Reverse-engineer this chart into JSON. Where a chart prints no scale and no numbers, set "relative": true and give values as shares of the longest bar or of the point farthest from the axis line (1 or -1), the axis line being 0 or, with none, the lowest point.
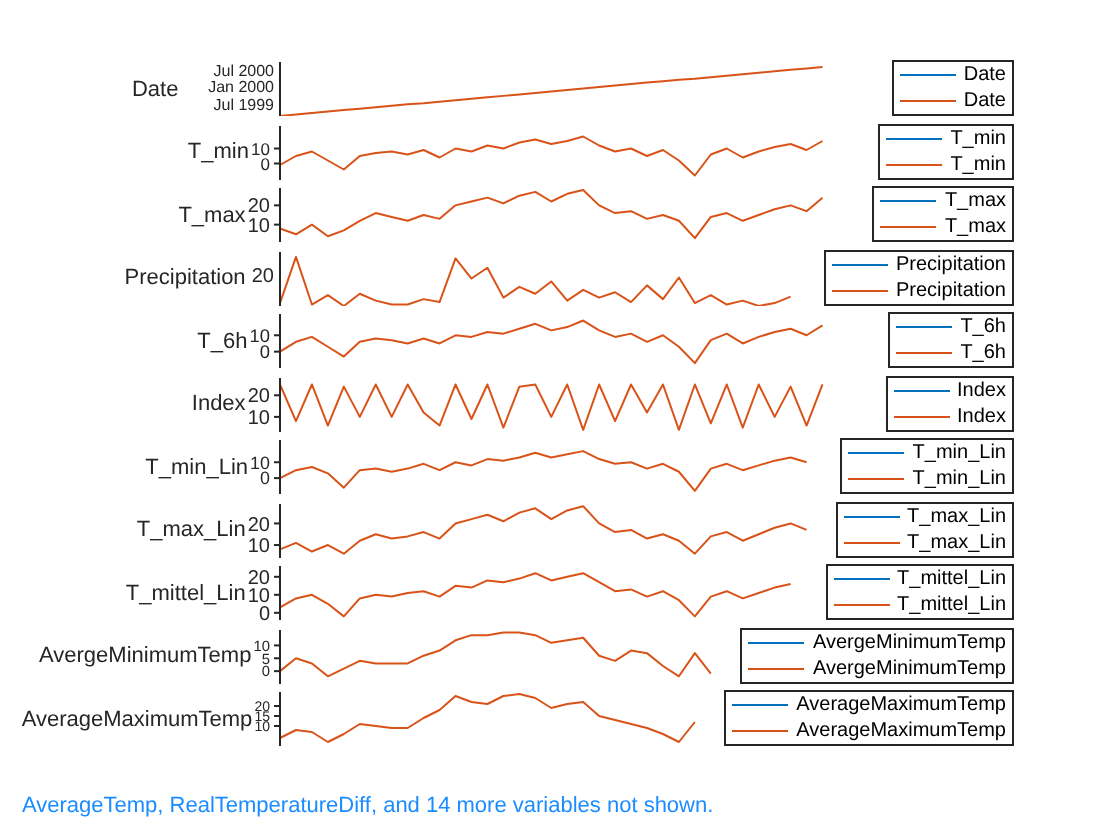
{
  "chart_data": [
    {
      "type": "line",
      "ylabel": "Date",
      "tick_labels": "y",
      "legend": "right",
      "marker": "none",
      "line_style": "solid",
      "categories": [
        null,
        null,
        null,
        null,
        null,
        null,
        null,
        null,
        null,
        null,
        null,
        null,
        null,
        null,
        null,
        null,
        null,
        null,
        null,
        null,
        null,
        null,
        null,
        null,
        null,
        null,
        null,
        null,
        null,
        null,
        null,
        null,
        null,
        null,
        null,
        null,
        null,
        null,
        null,
        null,
        null,
        null,
        null,
        null,
        null,
        null,
        null
      ],
      "relative": true,
      "annotations": [
        "Jul 2000",
        "Jan 2000",
        "Jul 1999"
      ],
      "series": [
        {
          "name": "Date",
          "color": "#0072bd",
          "values": [
            null,
            null,
            null,
            null,
            null,
            null,
            null,
            null,
            null,
            null,
            null,
            null,
            null,
            null,
            null,
            null,
            null,
            null,
            null,
            null,
            null,
            null,
            null,
            null,
            null,
            null,
            null,
            null,
            null,
            null,
            null,
            null,
            null,
            null,
            null,
            null,
            null,
            null,
            null,
            null,
            null,
            null,
            null,
            null,
            null,
            null,
            null
          ]
        },
        {
          "name": "Date",
          "color": "#d95319",
          "values": [
            0,
            0.03,
            0.06,
            0.09,
            0.12,
            0.15,
            0.18,
            0.21,
            0.24,
            0.26,
            0.29,
            0.32,
            0.35,
            0.38,
            0.41,
            0.44,
            0.47,
            0.5,
            0.53,
            0.56,
            0.59,
            0.62,
            0.65,
            0.68,
            0.71,
            0.74,
            0.76,
            0.79,
            0.82,
            0.85,
            0.88,
            0.91,
            0.94,
            0.97,
            1,
            null,
            null,
            null,
            null,
            null,
            null,
            null,
            null,
            null,
            null,
            null,
            null
          ]
        }
      ]
    },
    {
      "type": "line",
      "ylabel": "T_min",
      "tick_labels": "y",
      "legend": "right",
      "marker": "none",
      "line_style": "solid",
      "categories": [
        null,
        null,
        null,
        null,
        null,
        null,
        null,
        null,
        null,
        null,
        null,
        null,
        null,
        null,
        null,
        null,
        null,
        null,
        null,
        null,
        null,
        null,
        null,
        null,
        null,
        null,
        null,
        null,
        null,
        null,
        null,
        null,
        null,
        null,
        null,
        null,
        null,
        null,
        null,
        null,
        null,
        null,
        null,
        null,
        null,
        null,
        null
      ],
      "ylim": [
        -11,
        25
      ],
      "yticks": [
        0,
        10
      ],
      "series": [
        {
          "name": "T_min",
          "color": "#0072bd",
          "values": [
            null,
            null,
            null,
            null,
            null,
            null,
            null,
            null,
            null,
            null,
            null,
            null,
            null,
            null,
            null,
            null,
            null,
            null,
            null,
            null,
            null,
            null,
            null,
            null,
            null,
            null,
            null,
            null,
            null,
            null,
            null,
            null,
            null,
            null,
            null,
            null,
            null,
            null,
            null,
            null,
            null,
            null,
            null,
            null,
            null,
            null,
            null
          ]
        },
        {
          "name": "T_min",
          "color": "#d95319",
          "values": [
            -1,
            5,
            8,
            2,
            -4,
            5,
            7,
            8,
            6,
            9,
            4,
            10,
            8,
            12,
            10,
            14,
            16,
            13,
            15,
            18,
            12,
            8,
            10,
            5,
            9,
            2,
            -8,
            6,
            10,
            4,
            8,
            11,
            13,
            9,
            15,
            null,
            null,
            null,
            null,
            null,
            null,
            null,
            null,
            null,
            null,
            null,
            null
          ]
        }
      ]
    },
    {
      "type": "line",
      "ylabel": "T_max",
      "tick_labels": "y",
      "legend": "right",
      "marker": "none",
      "line_style": "solid",
      "categories": [
        null,
        null,
        null,
        null,
        null,
        null,
        null,
        null,
        null,
        null,
        null,
        null,
        null,
        null,
        null,
        null,
        null,
        null,
        null,
        null,
        null,
        null,
        null,
        null,
        null,
        null,
        null,
        null,
        null,
        null,
        null,
        null,
        null,
        null,
        null,
        null,
        null,
        null,
        null,
        null,
        null,
        null,
        null,
        null,
        null,
        null,
        null
      ],
      "ylim": [
        1,
        29
      ],
      "yticks": [
        10,
        20
      ],
      "series": [
        {
          "name": "T_max",
          "color": "#0072bd",
          "values": [
            null,
            null,
            null,
            null,
            null,
            null,
            null,
            null,
            null,
            null,
            null,
            null,
            null,
            null,
            null,
            null,
            null,
            null,
            null,
            null,
            null,
            null,
            null,
            null,
            null,
            null,
            null,
            null,
            null,
            null,
            null,
            null,
            null,
            null,
            null,
            null,
            null,
            null,
            null,
            null,
            null,
            null,
            null,
            null,
            null,
            null,
            null
          ]
        },
        {
          "name": "T_max",
          "color": "#d95319",
          "values": [
            8,
            5,
            10,
            4,
            7,
            12,
            16,
            14,
            12,
            15,
            13,
            20,
            22,
            24,
            21,
            25,
            27,
            22,
            26,
            28,
            20,
            16,
            17,
            13,
            15,
            12,
            3,
            14,
            16,
            12,
            15,
            18,
            20,
            17,
            24,
            null,
            null,
            null,
            null,
            null,
            null,
            null,
            null,
            null,
            null,
            null,
            null
          ]
        }
      ]
    },
    {
      "type": "line",
      "ylabel": "Precipitation",
      "tick_labels": "y",
      "legend": "right",
      "marker": "none",
      "line_style": "solid",
      "categories": [
        null,
        null,
        null,
        null,
        null,
        null,
        null,
        null,
        null,
        null,
        null,
        null,
        null,
        null,
        null,
        null,
        null,
        null,
        null,
        null,
        null,
        null,
        null,
        null,
        null,
        null,
        null,
        null,
        null,
        null,
        null,
        null,
        null,
        null,
        null,
        null,
        null,
        null,
        null,
        null,
        null,
        null,
        null,
        null,
        null,
        null,
        null
      ],
      "relative": true,
      "annotations": [
        "20"
      ],
      "series": [
        {
          "name": "Precipitation",
          "color": "#0072bd",
          "values": [
            null,
            null,
            null,
            null,
            null,
            null,
            null,
            null,
            null,
            null,
            null,
            null,
            null,
            null,
            null,
            null,
            null,
            null,
            null,
            null,
            null,
            null,
            null,
            null,
            null,
            null,
            null,
            null,
            null,
            null,
            null,
            null,
            null,
            null,
            null,
            null,
            null,
            null,
            null,
            null,
            null,
            null,
            null,
            null,
            null,
            null,
            null
          ]
        },
        {
          "name": "Precipitation",
          "color": "#d95319",
          "values": [
            0.06,
            1,
            0.03,
            0.22,
            0,
            0.25,
            0.11,
            0.03,
            0.03,
            0.14,
            0.08,
            0.97,
            0.56,
            0.78,
            0.17,
            0.39,
            0.25,
            0.5,
            0.11,
            0.33,
            0.17,
            0.28,
            0.08,
            0.42,
            0.14,
            0.58,
            0.06,
            0.22,
            0.03,
            0.11,
            0,
            0.06,
            0.19,
            null,
            null,
            null,
            null,
            null,
            null,
            null,
            null,
            null,
            null,
            null,
            null,
            null,
            null
          ]
        }
      ]
    },
    {
      "type": "line",
      "ylabel": "T_6h",
      "tick_labels": "y",
      "legend": "right",
      "marker": "none",
      "line_style": "solid",
      "categories": [
        null,
        null,
        null,
        null,
        null,
        null,
        null,
        null,
        null,
        null,
        null,
        null,
        null,
        null,
        null,
        null,
        null,
        null,
        null,
        null,
        null,
        null,
        null,
        null,
        null,
        null,
        null,
        null,
        null,
        null,
        null,
        null,
        null,
        null,
        null,
        null,
        null,
        null,
        null,
        null,
        null,
        null,
        null,
        null,
        null,
        null,
        null
      ],
      "ylim": [
        -10,
        23
      ],
      "yticks": [
        0,
        10
      ],
      "series": [
        {
          "name": "T_6h",
          "color": "#0072bd",
          "values": [
            null,
            null,
            null,
            null,
            null,
            null,
            null,
            null,
            null,
            null,
            null,
            null,
            null,
            null,
            null,
            null,
            null,
            null,
            null,
            null,
            null,
            null,
            null,
            null,
            null,
            null,
            null,
            null,
            null,
            null,
            null,
            null,
            null,
            null,
            null,
            null,
            null,
            null,
            null,
            null,
            null,
            null,
            null,
            null,
            null,
            null,
            null
          ]
        },
        {
          "name": "T_6h",
          "color": "#d95319",
          "values": [
            0,
            6,
            9,
            3,
            -3,
            6,
            8,
            7,
            5,
            8,
            5,
            10,
            9,
            12,
            11,
            14,
            17,
            13,
            15,
            19,
            13,
            9,
            11,
            6,
            10,
            3,
            -7,
            7,
            11,
            5,
            9,
            12,
            14,
            10,
            16,
            null,
            null,
            null,
            null,
            null,
            null,
            null,
            null,
            null,
            null,
            null,
            null
          ]
        }
      ]
    },
    {
      "type": "line",
      "ylabel": "Index",
      "tick_labels": "y",
      "legend": "right",
      "marker": "none",
      "line_style": "solid",
      "categories": [
        null,
        null,
        null,
        null,
        null,
        null,
        null,
        null,
        null,
        null,
        null,
        null,
        null,
        null,
        null,
        null,
        null,
        null,
        null,
        null,
        null,
        null,
        null,
        null,
        null,
        null,
        null,
        null,
        null,
        null,
        null,
        null,
        null,
        null,
        null,
        null,
        null,
        null,
        null,
        null,
        null,
        null,
        null,
        null,
        null,
        null,
        null
      ],
      "ylim": [
        3,
        28
      ],
      "yticks": [
        10,
        20
      ],
      "series": [
        {
          "name": "Index",
          "color": "#0072bd",
          "values": [
            null,
            null,
            null,
            null,
            null,
            null,
            null,
            null,
            null,
            null,
            null,
            null,
            null,
            null,
            null,
            null,
            null,
            null,
            null,
            null,
            null,
            null,
            null,
            null,
            null,
            null,
            null,
            null,
            null,
            null,
            null,
            null,
            null,
            null,
            null,
            null,
            null,
            null,
            null,
            null,
            null,
            null,
            null,
            null,
            null,
            null,
            null
          ]
        },
        {
          "name": "Index",
          "color": "#d95319",
          "values": [
            25,
            8,
            25,
            6,
            24,
            10,
            25,
            10,
            25,
            12,
            6,
            25,
            9,
            25,
            5,
            24,
            25,
            10,
            25,
            4,
            25,
            8,
            25,
            12,
            25,
            4,
            25,
            7,
            25,
            5,
            25,
            10,
            24,
            6,
            25,
            null,
            null,
            null,
            null,
            null,
            null,
            null,
            null,
            null,
            null,
            null,
            null
          ]
        }
      ]
    },
    {
      "type": "line",
      "ylabel": "T_min_Lin",
      "tick_labels": "y",
      "legend": "right",
      "marker": "none",
      "line_style": "solid",
      "categories": [
        null,
        null,
        null,
        null,
        null,
        null,
        null,
        null,
        null,
        null,
        null,
        null,
        null,
        null,
        null,
        null,
        null,
        null,
        null,
        null,
        null,
        null,
        null,
        null,
        null,
        null,
        null,
        null,
        null,
        null,
        null,
        null,
        null,
        null,
        null,
        null,
        null,
        null,
        null,
        null,
        null,
        null,
        null,
        null,
        null,
        null,
        null
      ],
      "ylim": [
        -10,
        24
      ],
      "yticks": [
        0,
        10
      ],
      "series": [
        {
          "name": "T_min_Lin",
          "color": "#0072bd",
          "values": [
            null,
            null,
            null,
            null,
            null,
            null,
            null,
            null,
            null,
            null,
            null,
            null,
            null,
            null,
            null,
            null,
            null,
            null,
            null,
            null,
            null,
            null,
            null,
            null,
            null,
            null,
            null,
            null,
            null,
            null,
            null,
            null,
            null,
            null,
            null,
            null,
            null,
            null,
            null,
            null,
            null,
            null,
            null,
            null,
            null,
            null,
            null
          ]
        },
        {
          "name": "T_min_Lin",
          "color": "#d95319",
          "values": [
            0,
            5,
            7,
            3,
            -6,
            5,
            6,
            4,
            6,
            9,
            5,
            10,
            8,
            12,
            11,
            13,
            16,
            13,
            15,
            17,
            12,
            9,
            10,
            6,
            9,
            4,
            -8,
            6,
            9,
            5,
            8,
            11,
            13,
            10,
            null,
            null,
            null,
            null,
            null,
            null,
            null,
            null,
            null,
            null,
            null,
            null,
            null
          ]
        }
      ]
    },
    {
      "type": "line",
      "ylabel": "T_max_Lin",
      "tick_labels": "y",
      "legend": "right",
      "marker": "none",
      "line_style": "solid",
      "categories": [
        null,
        null,
        null,
        null,
        null,
        null,
        null,
        null,
        null,
        null,
        null,
        null,
        null,
        null,
        null,
        null,
        null,
        null,
        null,
        null,
        null,
        null,
        null,
        null,
        null,
        null,
        null,
        null,
        null,
        null,
        null,
        null,
        null,
        null,
        null,
        null,
        null,
        null,
        null,
        null,
        null,
        null,
        null,
        null,
        null,
        null,
        null
      ],
      "ylim": [
        4,
        29
      ],
      "yticks": [
        10,
        20
      ],
      "series": [
        {
          "name": "T_max_Lin",
          "color": "#0072bd",
          "values": [
            null,
            null,
            null,
            null,
            null,
            null,
            null,
            null,
            null,
            null,
            null,
            null,
            null,
            null,
            null,
            null,
            null,
            null,
            null,
            null,
            null,
            null,
            null,
            null,
            null,
            null,
            null,
            null,
            null,
            null,
            null,
            null,
            null,
            null,
            null,
            null,
            null,
            null,
            null,
            null,
            null,
            null,
            null,
            null,
            null,
            null,
            null
          ]
        },
        {
          "name": "T_max_Lin",
          "color": "#d95319",
          "values": [
            8,
            11,
            7,
            10,
            6,
            12,
            15,
            13,
            14,
            16,
            13,
            20,
            22,
            24,
            21,
            25,
            27,
            22,
            26,
            28,
            20,
            16,
            17,
            13,
            15,
            12,
            6,
            14,
            16,
            12,
            15,
            18,
            20,
            17,
            null,
            null,
            null,
            null,
            null,
            null,
            null,
            null,
            null,
            null,
            null,
            null,
            null
          ]
        }
      ]
    },
    {
      "type": "line",
      "ylabel": "T_mittel_Lin",
      "tick_labels": "y",
      "legend": "right",
      "marker": "none",
      "line_style": "solid",
      "categories": [
        null,
        null,
        null,
        null,
        null,
        null,
        null,
        null,
        null,
        null,
        null,
        null,
        null,
        null,
        null,
        null,
        null,
        null,
        null,
        null,
        null,
        null,
        null,
        null,
        null,
        null,
        null,
        null,
        null,
        null,
        null,
        null,
        null,
        null,
        null,
        null,
        null,
        null,
        null,
        null,
        null,
        null,
        null,
        null,
        null,
        null,
        null
      ],
      "ylim": [
        -4,
        26
      ],
      "yticks": [
        0,
        10,
        20
      ],
      "series": [
        {
          "name": "T_mittel_Lin",
          "color": "#0072bd",
          "values": [
            null,
            null,
            null,
            null,
            null,
            null,
            null,
            null,
            null,
            null,
            null,
            null,
            null,
            null,
            null,
            null,
            null,
            null,
            null,
            null,
            null,
            null,
            null,
            null,
            null,
            null,
            null,
            null,
            null,
            null,
            null,
            null,
            null,
            null,
            null,
            null,
            null,
            null,
            null,
            null,
            null,
            null,
            null,
            null,
            null,
            null,
            null
          ]
        },
        {
          "name": "T_mittel_Lin",
          "color": "#d95319",
          "values": [
            3,
            8,
            10,
            5,
            -2,
            8,
            10,
            9,
            11,
            12,
            9,
            15,
            14,
            18,
            17,
            19,
            22,
            18,
            20,
            22,
            17,
            12,
            13,
            9,
            12,
            7,
            -2,
            9,
            12,
            8,
            11,
            14,
            16,
            null,
            null,
            null,
            null,
            null,
            null,
            null,
            null,
            null,
            null,
            null,
            null,
            null,
            null
          ]
        }
      ]
    },
    {
      "type": "line",
      "ylabel": "AvergeMinimumTemp",
      "tick_labels": "y",
      "legend": "right",
      "marker": "none",
      "line_style": "solid",
      "categories": [
        null,
        null,
        null,
        null,
        null,
        null,
        null,
        null,
        null,
        null,
        null,
        null,
        null,
        null,
        null,
        null,
        null,
        null,
        null,
        null,
        null,
        null,
        null,
        null,
        null,
        null,
        null,
        null,
        null,
        null,
        null,
        null,
        null,
        null,
        null,
        null,
        null,
        null,
        null,
        null,
        null,
        null,
        null,
        null,
        null,
        null,
        null
      ],
      "ylim": [
        -5,
        16
      ],
      "yticks": [
        0,
        5,
        10
      ],
      "series": [
        {
          "name": "AvergeMinimumTemp",
          "color": "#0072bd",
          "values": [
            null,
            null,
            null,
            null,
            null,
            null,
            null,
            null,
            null,
            null,
            null,
            null,
            null,
            null,
            null,
            null,
            null,
            null,
            null,
            null,
            null,
            null,
            null,
            null,
            null,
            null,
            null,
            null,
            null,
            null,
            null,
            null,
            null,
            null,
            null,
            null,
            null,
            null,
            null,
            null,
            null,
            null,
            null,
            null,
            null,
            null,
            null
          ]
        },
        {
          "name": "AvergeMinimumTemp",
          "color": "#d95319",
          "values": [
            0,
            5,
            3,
            -2,
            1,
            4,
            3,
            3,
            3,
            6,
            8,
            12,
            14,
            14,
            15,
            15,
            14,
            11,
            12,
            13,
            6,
            4,
            8,
            7,
            2,
            -2,
            7,
            -1,
            null,
            null,
            null,
            null,
            null,
            null,
            null,
            null,
            null,
            null,
            null,
            null,
            null,
            null,
            null,
            null,
            null,
            null,
            null
          ]
        }
      ]
    },
    {
      "type": "line",
      "ylabel": "AverageMaximumTemp",
      "tick_labels": "y",
      "legend": "right",
      "marker": "none",
      "line_style": "solid",
      "categories": [
        null,
        null,
        null,
        null,
        null,
        null,
        null,
        null,
        null,
        null,
        null,
        null,
        null,
        null,
        null,
        null,
        null,
        null,
        null,
        null,
        null,
        null,
        null,
        null,
        null,
        null,
        null,
        null,
        null,
        null,
        null,
        null,
        null,
        null,
        null,
        null,
        null,
        null,
        null,
        null,
        null,
        null,
        null,
        null,
        null,
        null,
        null
      ],
      "ylim": [
        0,
        27
      ],
      "yticks": [
        10,
        15,
        20
      ],
      "annotations": [
        "AverageTemp, RealTemperatureDiff, and 14 more variables not shown."
      ],
      "series": [
        {
          "name": "AverageMaximumTemp",
          "color": "#0072bd",
          "values": [
            null,
            null,
            null,
            null,
            null,
            null,
            null,
            null,
            null,
            null,
            null,
            null,
            null,
            null,
            null,
            null,
            null,
            null,
            null,
            null,
            null,
            null,
            null,
            null,
            null,
            null,
            null,
            null,
            null,
            null,
            null,
            null,
            null,
            null,
            null,
            null,
            null,
            null,
            null,
            null,
            null,
            null,
            null,
            null,
            null,
            null,
            null
          ]
        },
        {
          "name": "AverageMaximumTemp",
          "color": "#d95319",
          "values": [
            4,
            8,
            7,
            2,
            6,
            11,
            10,
            9,
            9,
            14,
            18,
            25,
            22,
            21,
            25,
            26,
            24,
            19,
            21,
            22,
            15,
            13,
            11,
            9,
            6,
            2,
            12,
            null,
            null,
            null,
            null,
            null,
            null,
            null,
            null,
            null,
            null,
            null,
            null,
            null,
            null,
            null,
            null,
            null,
            null,
            null,
            null
          ]
        }
      ]
    }
  ]
}
